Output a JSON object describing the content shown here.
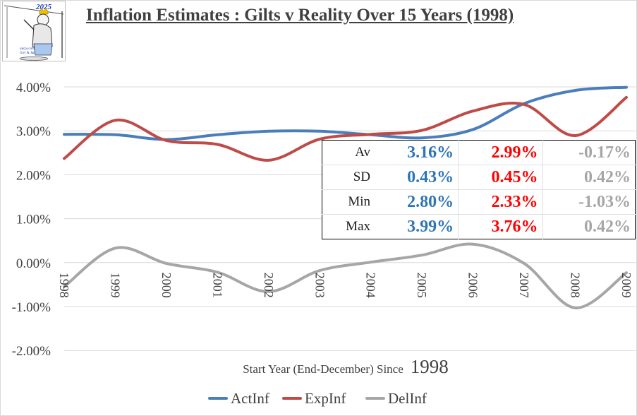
{
  "title": "Inflation Estimates : Gilts v Reality Over 15 Years (1998)",
  "logo": {
    "year": "2025",
    "line1": "ukcpi.com",
    "line2": "Gov & Jan"
  },
  "colors": {
    "actinf": "#4a7ebb",
    "expinf": "#be4b48",
    "delinf": "#a6a6a6",
    "av_act": "#2e75b6",
    "av_exp": "#ff0000",
    "av_del": "#a6a6a6"
  },
  "stats": {
    "rows": [
      {
        "label": "Av",
        "act": "3.16%",
        "exp": "2.99%",
        "del": "-0.17%"
      },
      {
        "label": "SD",
        "act": "0.43%",
        "exp": "0.45%",
        "del": "0.42%"
      },
      {
        "label": "Min",
        "act": "2.80%",
        "exp": "2.33%",
        "del": "-1.03%"
      },
      {
        "label": "Max",
        "act": "3.99%",
        "exp": "3.76%",
        "del": "0.42%"
      }
    ]
  },
  "chart_data": {
    "type": "line",
    "categories": [
      "1998",
      "1999",
      "2000",
      "2001",
      "2002",
      "2003",
      "2004",
      "2005",
      "2006",
      "2007",
      "2008",
      "2009"
    ],
    "series": [
      {
        "name": "ActInf",
        "values": [
          2.92,
          2.91,
          2.8,
          2.91,
          2.99,
          2.99,
          2.91,
          2.84,
          3.03,
          3.62,
          3.92,
          3.99
        ]
      },
      {
        "name": "ExpInf",
        "values": [
          2.37,
          3.24,
          2.78,
          2.69,
          2.33,
          2.81,
          2.92,
          3.01,
          3.45,
          3.6,
          2.89,
          3.76
        ]
      },
      {
        "name": "DelInf",
        "values": [
          -0.55,
          0.33,
          -0.02,
          -0.22,
          -0.66,
          -0.18,
          0.01,
          0.17,
          0.42,
          -0.02,
          -1.03,
          -0.23
        ]
      }
    ],
    "y_ticks": [
      "4.00%",
      "3.00%",
      "2.00%",
      "1.00%",
      "0.00%",
      "-1.00%",
      "-2.00%"
    ],
    "ylim": [
      -2,
      4
    ],
    "xlabel_prefix": "Start Year (End-December) Since",
    "xlabel_year": "1998",
    "legend": "bottom",
    "grid": true
  }
}
